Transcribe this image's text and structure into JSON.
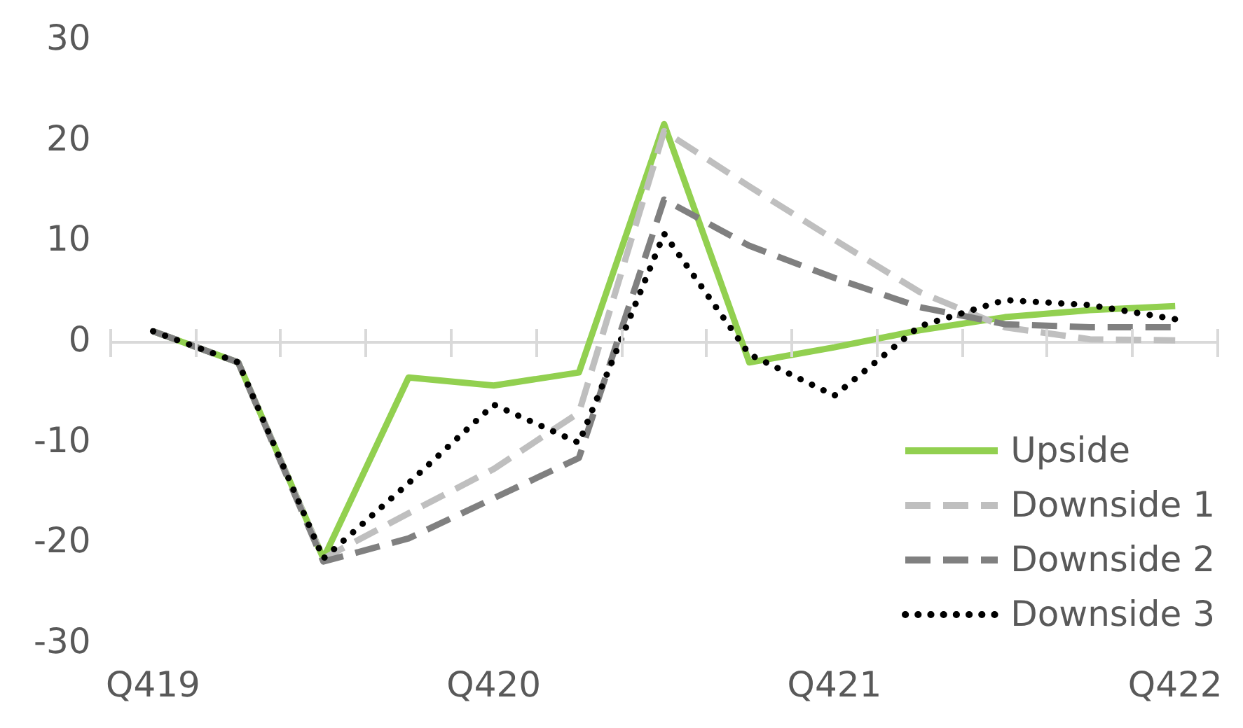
{
  "chart_data": {
    "type": "line",
    "categories": [
      "Q419",
      null,
      null,
      null,
      "Q420",
      null,
      null,
      null,
      "Q421",
      null,
      null,
      null,
      "Q422"
    ],
    "ylim": [
      -30,
      30
    ],
    "yticks": [
      -30,
      -20,
      -10,
      0,
      10,
      20,
      30
    ],
    "grid": false,
    "ref_lines": [
      {
        "axis": "y",
        "value": 0,
        "color": "#d9d9d9"
      }
    ],
    "legend": "bottom right",
    "marker": "none",
    "series": [
      {
        "name": "Upside",
        "color": "#92d050",
        "line_style": "solid",
        "values": [
          1.1,
          -2,
          -21.5,
          -3.5,
          -4.3,
          -3,
          21.7,
          -2,
          -0.5,
          1.2,
          2.5,
          3.2,
          3.6
        ]
      },
      {
        "name": "Downside 1",
        "color": "#bfbfbf",
        "line_style": "dashed",
        "values": [
          1.1,
          -2,
          -21.5,
          -17,
          -12.6,
          -7,
          21,
          15.5,
          10.2,
          5,
          1.5,
          0.3,
          0.2
        ]
      },
      {
        "name": "Downside 2",
        "color": "#808080",
        "line_style": "dashed",
        "values": [
          1.1,
          -2,
          -21.8,
          -19.5,
          -15.5,
          -11.5,
          14.2,
          9.6,
          6.4,
          3.5,
          1.8,
          1.5,
          1.5
        ]
      },
      {
        "name": "Downside 3",
        "color": "#000000",
        "line_style": "dotted",
        "values": [
          1.1,
          -2,
          -21.5,
          -14,
          -6.2,
          -10,
          10.8,
          -1.2,
          -5.3,
          1.6,
          4.2,
          3.7,
          2.3
        ]
      }
    ]
  }
}
